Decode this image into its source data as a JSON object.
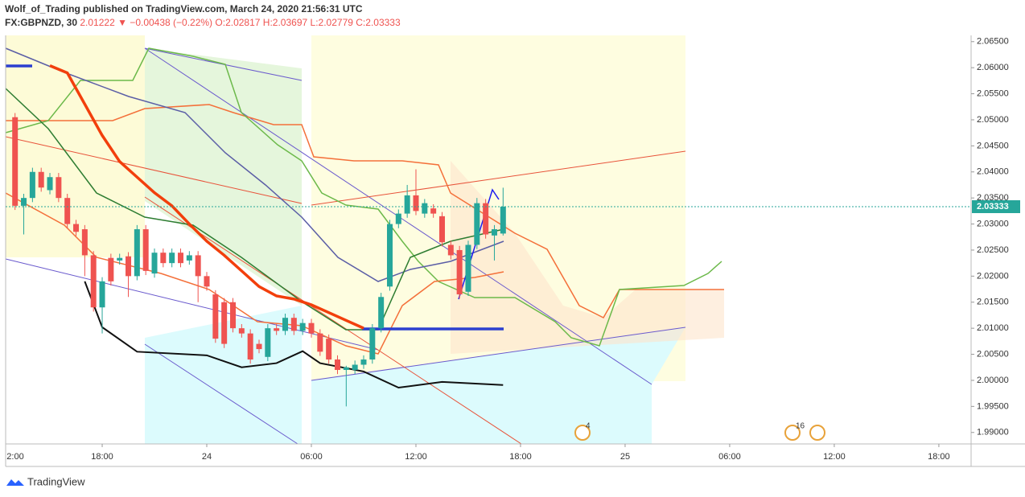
{
  "header": {
    "title": "Wolf_of_Trading published on TradingView.com, March 24, 2020 21:56:31 UTC",
    "symbol": "FX:GBPNZD, 30",
    "price": "2.01222",
    "change": "▼ −0.00438 (−0.22%)",
    "open": "O:2.02817",
    "high": "H:2.03697",
    "low": "L:2.02779",
    "close": "C:2.03333"
  },
  "chart_data": {
    "type": "candlestick",
    "x": [
      -11,
      -10.5,
      -10,
      -9.5,
      -9,
      -8.5,
      -8,
      -7.5,
      -7,
      -6.5,
      -6,
      -5.5,
      -5,
      -4.5,
      -4,
      -3.5,
      -3,
      -2.5,
      -2,
      -1.5,
      -1,
      -0.5,
      0,
      0.5,
      1,
      1.5,
      2,
      2.5,
      3,
      3.5,
      4,
      4.5,
      5,
      5.5,
      6,
      6.5,
      7,
      7.5,
      8,
      8.5,
      9,
      9.5,
      10,
      10.5,
      11,
      11.5,
      12,
      12.5,
      13,
      13.5,
      14,
      14.5,
      15,
      15.5,
      16,
      16.5,
      17
    ],
    "open": [
      2.0505,
      2.0335,
      2.035,
      2.04,
      2.0365,
      2.039,
      2.035,
      2.03,
      2.029,
      2.024,
      2.014,
      2.0235,
      2.023,
      2.0238,
      2.02,
      2.029,
      2.0205,
      2.0245,
      2.0225,
      2.0245,
      2.023,
      2.024,
      2.02,
      2.0165,
      2.015,
      2.015,
      2.01,
      2.009,
      2.007,
      2.0045,
      2.01,
      2.0095,
      2.012,
      2.0095,
      2.011,
      2.009,
      2.008,
      2.004,
      2.002,
      2.002,
      2.003,
      2.004,
      2.01,
      2.018,
      2.03,
      2.032,
      2.0355,
      2.032,
      2.033,
      2.0315,
      2.026,
      2.025,
      2.017,
      2.026,
      2.034,
      2.0278,
      2.02817
    ],
    "high": [
      2.0513,
      2.0358,
      2.0408,
      2.0408,
      2.0398,
      2.0398,
      2.0358,
      2.0308,
      2.0298,
      2.0248,
      2.0198,
      2.0243,
      2.0243,
      2.0246,
      2.0298,
      2.0298,
      2.0253,
      2.0253,
      2.0253,
      2.0253,
      2.0248,
      2.0248,
      2.0208,
      2.0173,
      2.0158,
      2.0158,
      2.0108,
      2.0098,
      2.0078,
      2.0108,
      2.0108,
      2.0128,
      2.0128,
      2.0118,
      2.0118,
      2.0098,
      2.0088,
      2.0048,
      2.0028,
      2.0038,
      2.0048,
      2.0108,
      2.0168,
      2.0308,
      2.0328,
      2.0375,
      2.0405,
      2.0348,
      2.0338,
      2.0323,
      2.0268,
      2.0258,
      2.0268,
      2.035,
      2.0348,
      2.0298,
      2.03697
    ],
    "low": [
      2.0327,
      2.028,
      2.0342,
      2.0362,
      2.0357,
      2.0342,
      2.0292,
      2.0277,
      2.02,
      2.0132,
      2.009,
      2.0182,
      2.0222,
      2.016,
      2.0192,
      2.0202,
      2.0197,
      2.0217,
      2.0217,
      2.0217,
      2.0222,
      2.015,
      2.0172,
      2.0072,
      2.0062,
      2.0092,
      2.0082,
      2.0032,
      2.0052,
      2.0037,
      2.0087,
      2.0087,
      2.0087,
      2.0087,
      2.0082,
      2.0047,
      2.0032,
      2.0012,
      1.995,
      2.0012,
      2.0022,
      2.0032,
      2.0092,
      2.0172,
      2.0292,
      2.0312,
      2.0317,
      2.0312,
      2.0312,
      2.0257,
      2.0232,
      2.0157,
      2.0162,
      2.0252,
      2.0272,
      2.023,
      2.02779
    ],
    "close": [
      2.0335,
      2.035,
      2.04,
      2.037,
      2.039,
      2.035,
      2.03,
      2.0285,
      2.024,
      2.014,
      2.019,
      2.019,
      2.0235,
      2.02,
      2.029,
      2.021,
      2.0245,
      2.0225,
      2.0245,
      2.0225,
      2.024,
      2.02,
      2.018,
      2.008,
      2.007,
      2.01,
      2.009,
      2.004,
      2.006,
      2.01,
      2.0095,
      2.012,
      2.0095,
      2.011,
      2.009,
      2.0055,
      2.004,
      2.002,
      2.0025,
      2.003,
      2.004,
      2.01,
      2.016,
      2.03,
      2.032,
      2.0355,
      2.0325,
      2.034,
      2.032,
      2.0265,
      2.024,
      2.0165,
      2.026,
      2.034,
      2.028,
      2.029,
      2.03333
    ],
    "up_color": "#26a69a",
    "down_color": "#ef5350",
    "lines": [
      {
        "color": "#f23f0c",
        "width": 3.5,
        "x": [
          -9,
          -8,
          -7,
          -6,
          -5,
          -4,
          -3,
          -2,
          -1,
          0,
          1,
          2,
          3,
          4,
          5,
          6,
          7,
          8,
          9
        ],
        "values": [
          2.0604,
          2.059,
          2.053,
          2.047,
          2.042,
          2.039,
          2.036,
          2.0335,
          2.03,
          2.0267,
          2.024,
          2.021,
          2.018,
          2.0162,
          2.0156,
          2.0145,
          2.013,
          2.0115,
          2.01
        ]
      },
      {
        "color": "#111111",
        "width": 2,
        "x": [
          -7,
          -6,
          -4,
          0,
          2,
          4,
          5.5,
          6.5,
          9,
          11,
          13.5,
          17
        ],
        "values": [
          2.019,
          2.0102,
          2.0055,
          2.0048,
          2.0025,
          2.0033,
          2.0056,
          2.0033,
          2.0017,
          1.9986,
          1.9997,
          1.9991
        ]
      }
    ],
    "xlim": [
      -11.54,
      43.85
    ],
    "ylim": [
      1.9878,
      2.0662
    ],
    "xticks": [
      {
        "value": -12,
        "label": "2:00"
      },
      {
        "value": -6,
        "label": "18:00"
      },
      {
        "value": 0,
        "label": "24"
      },
      {
        "value": 6,
        "label": "06:00"
      },
      {
        "value": 12,
        "label": "12:00"
      },
      {
        "value": 18,
        "label": "18:00"
      },
      {
        "value": 24,
        "label": "25"
      },
      {
        "value": 30,
        "label": "06:00"
      },
      {
        "value": 36,
        "label": "12:00"
      },
      {
        "value": 42,
        "label": "18:00"
      }
    ],
    "yticks": [
      {
        "value": 1.99,
        "label": "1.99000"
      },
      {
        "value": 1.995,
        "label": "1.99500"
      },
      {
        "value": 2.0,
        "label": "2.00000"
      },
      {
        "value": 2.005,
        "label": "2.00500"
      },
      {
        "value": 2.01,
        "label": "2.01000"
      },
      {
        "value": 2.015,
        "label": "2.01500"
      },
      {
        "value": 2.02,
        "label": "2.02000"
      },
      {
        "value": 2.025,
        "label": "2.02500"
      },
      {
        "value": 2.03,
        "label": "2.03000"
      },
      {
        "value": 2.035,
        "label": "2.03500"
      },
      {
        "value": 2.04,
        "label": "2.04000"
      },
      {
        "value": 2.045,
        "label": "2.04500"
      },
      {
        "value": 2.05,
        "label": "2.05000"
      },
      {
        "value": 2.055,
        "label": "2.05500"
      },
      {
        "value": 2.06,
        "label": "2.06000"
      },
      {
        "value": 2.065,
        "label": "2.06500"
      }
    ],
    "events": [
      "4",
      "16"
    ]
  },
  "footer": {
    "brand": "TradingView"
  }
}
